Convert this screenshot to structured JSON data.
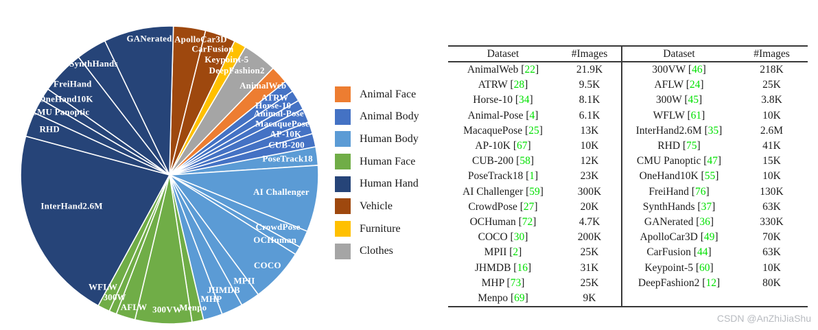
{
  "page": {
    "background": "#ffffff",
    "watermark": {
      "text": "CSDN @AnZhiJiaShu",
      "color": "#b8bbc0"
    }
  },
  "chart_data": {
    "type": "pie",
    "title": "",
    "value_unit": "K images",
    "scale": "sqrt-proportional slice angles",
    "rotation_deg": 1.5,
    "legend_position": "right",
    "grid": false,
    "categories": [
      {
        "name": "Animal Face",
        "color": "#ED7D31"
      },
      {
        "name": "Animal Body",
        "color": "#4472C4"
      },
      {
        "name": "Human Body",
        "color": "#5B9BD5"
      },
      {
        "name": "Human Face",
        "color": "#70AD47"
      },
      {
        "name": "Human Hand",
        "color": "#264478"
      },
      {
        "name": "Vehicle",
        "color": "#9E480E"
      },
      {
        "name": "Furniture",
        "color": "#FFC000"
      },
      {
        "name": "Clothes",
        "color": "#A5A5A5"
      }
    ],
    "slices": [
      {
        "name": "ApolloCar3D",
        "images_k": 70,
        "category": "Vehicle",
        "label_angle": 13,
        "label_r": 0.93
      },
      {
        "name": "CarFusion",
        "images_k": 63,
        "category": "Vehicle",
        "label_angle": 19,
        "label_r": 0.89
      },
      {
        "name": "Keypoint-5",
        "images_k": 10,
        "category": "Furniture",
        "label_angle": 26.5,
        "label_r": 0.86
      },
      {
        "name": "DeepFashion2",
        "images_k": 80,
        "category": "Clothes",
        "label_angle": 33,
        "label_r": 0.83
      },
      {
        "name": "AnimalWeb",
        "images_k": 21.9,
        "category": "Animal Face",
        "label_angle": 46.5,
        "label_r": 0.865
      },
      {
        "name": "ATRW",
        "images_k": 9.5,
        "category": "Animal Body",
        "label_angle": 54,
        "label_r": 0.875
      },
      {
        "name": "Horse-10",
        "images_k": 8.1,
        "category": "Animal Body",
        "label_angle": 56.5,
        "label_r": 0.835
      },
      {
        "name": "Animal-Pose",
        "images_k": 6.1,
        "category": "Animal Body",
        "label_angle": 61,
        "label_r": 0.84
      },
      {
        "name": "MacaquePose",
        "images_k": 13,
        "category": "Animal Body",
        "label_angle": 66,
        "label_r": 0.83
      },
      {
        "name": "AP-10K",
        "images_k": 10,
        "category": "Animal Body",
        "label_angle": 71,
        "label_r": 0.825
      },
      {
        "name": "CUB-200",
        "images_k": 12,
        "category": "Animal Body",
        "label_angle": 76,
        "label_r": 0.81
      },
      {
        "name": "PoseTrack18",
        "images_k": 23,
        "category": "Human Body",
        "label_angle": 82.5,
        "label_r": 0.8
      },
      {
        "name": "AI Challenger",
        "images_k": 300,
        "category": "Human Body",
        "label_angle": 99,
        "label_r": 0.76
      },
      {
        "name": "CrowdPose",
        "images_k": 20,
        "category": "Human Body",
        "label_angle": 116,
        "label_r": 0.81
      },
      {
        "name": "OCHuman",
        "images_k": 4.7,
        "category": "Human Body",
        "label_angle": 122,
        "label_r": 0.835
      },
      {
        "name": "COCO",
        "images_k": 200,
        "category": "Human Body",
        "label_angle": 133,
        "label_r": 0.9
      },
      {
        "name": "MPII",
        "images_k": 25,
        "category": "Human Body",
        "label_angle": 145,
        "label_r": 0.875
      },
      {
        "name": "JHMDB",
        "images_k": 31,
        "category": "Human Body",
        "label_angle": 155,
        "label_r": 0.86
      },
      {
        "name": "MHP",
        "images_k": 25,
        "category": "Human Body",
        "label_angle": 161.5,
        "label_r": 0.885
      },
      {
        "name": "Menpo",
        "images_k": 9,
        "category": "Human Face",
        "label_angle": 170,
        "label_r": 0.91
      },
      {
        "name": "300VW",
        "images_k": 218,
        "category": "Human Face",
        "label_angle": 181,
        "label_r": 0.91
      },
      {
        "name": "AFLW",
        "images_k": 25,
        "category": "Human Face",
        "label_angle": 195,
        "label_r": 0.925
      },
      {
        "name": "300W",
        "images_k": 3.8,
        "category": "Human Face",
        "label_angle": 204,
        "label_r": 0.905
      },
      {
        "name": "WFLW",
        "images_k": 10,
        "category": "Human Face",
        "label_angle": 210.5,
        "label_r": 0.88
      },
      {
        "name": "InterHand2.6M",
        "images_k": 2600,
        "category": "Human Hand",
        "label_angle": 252,
        "label_r": 0.69
      },
      {
        "name": "RHD",
        "images_k": 41,
        "category": "Human Hand",
        "label_angle": 290.5,
        "label_r": 0.86
      },
      {
        "name": "CMU Panoptic",
        "images_k": 15,
        "category": "Human Hand",
        "label_angle": 299.5,
        "label_r": 0.845
      },
      {
        "name": "OneHand10K",
        "images_k": 10,
        "category": "Human Hand",
        "label_angle": 306,
        "label_r": 0.86
      },
      {
        "name": "FreiHand",
        "images_k": 130,
        "category": "Human Hand",
        "label_angle": 313,
        "label_r": 0.89
      },
      {
        "name": "SynthHands",
        "images_k": 63,
        "category": "Human Hand",
        "label_angle": 325.5,
        "label_r": 0.9
      },
      {
        "name": "GANerated",
        "images_k": 330,
        "category": "Human Hand",
        "label_angle": 351.5,
        "label_r": 0.92
      }
    ]
  },
  "table": {
    "headers": [
      "Dataset",
      "#Images",
      "Dataset",
      "#Images"
    ],
    "cite_color": "#00E000",
    "left_rows": [
      {
        "dataset": "AnimalWeb",
        "cite": "22",
        "images": "21.9K"
      },
      {
        "dataset": "ATRW",
        "cite": "28",
        "images": "9.5K"
      },
      {
        "dataset": "Horse-10",
        "cite": "34",
        "images": "8.1K"
      },
      {
        "dataset": "Animal-Pose",
        "cite": "4",
        "images": "6.1K"
      },
      {
        "dataset": "MacaquePose",
        "cite": "25",
        "images": "13K"
      },
      {
        "dataset": "AP-10K",
        "cite": "67",
        "images": "10K"
      },
      {
        "dataset": "CUB-200",
        "cite": "58",
        "images": "12K"
      },
      {
        "dataset": "PoseTrack18",
        "cite": "1",
        "images": "23K"
      },
      {
        "dataset": "AI Challenger",
        "cite": "59",
        "images": "300K"
      },
      {
        "dataset": "CrowdPose",
        "cite": "27",
        "images": "20K"
      },
      {
        "dataset": "OCHuman",
        "cite": "72",
        "images": "4.7K"
      },
      {
        "dataset": "COCO",
        "cite": "30",
        "images": "200K"
      },
      {
        "dataset": "MPII",
        "cite": "2",
        "images": "25K"
      },
      {
        "dataset": "JHMDB",
        "cite": "16",
        "images": "31K"
      },
      {
        "dataset": "MHP",
        "cite": "73",
        "images": "25K"
      },
      {
        "dataset": "Menpo",
        "cite": "69",
        "images": "9K"
      }
    ],
    "right_rows": [
      {
        "dataset": "300VW",
        "cite": "46",
        "images": "218K"
      },
      {
        "dataset": "AFLW",
        "cite": "24",
        "images": "25K"
      },
      {
        "dataset": "300W",
        "cite": "45",
        "images": "3.8K"
      },
      {
        "dataset": "WFLW",
        "cite": "61",
        "images": "10K"
      },
      {
        "dataset": "InterHand2.6M",
        "cite": "35",
        "images": "2.6M"
      },
      {
        "dataset": "RHD",
        "cite": "75",
        "images": "41K"
      },
      {
        "dataset": "CMU Panoptic",
        "cite": "47",
        "images": "15K"
      },
      {
        "dataset": "OneHand10K",
        "cite": "55",
        "images": "10K"
      },
      {
        "dataset": "FreiHand",
        "cite": "76",
        "images": "130K"
      },
      {
        "dataset": "SynthHands",
        "cite": "37",
        "images": "63K"
      },
      {
        "dataset": "GANerated",
        "cite": "36",
        "images": "330K"
      },
      {
        "dataset": "ApolloCar3D",
        "cite": "49",
        "images": "70K"
      },
      {
        "dataset": "CarFusion",
        "cite": "44",
        "images": "63K"
      },
      {
        "dataset": "Keypoint-5",
        "cite": "60",
        "images": "10K"
      },
      {
        "dataset": "DeepFashion2",
        "cite": "12",
        "images": "80K"
      }
    ]
  }
}
